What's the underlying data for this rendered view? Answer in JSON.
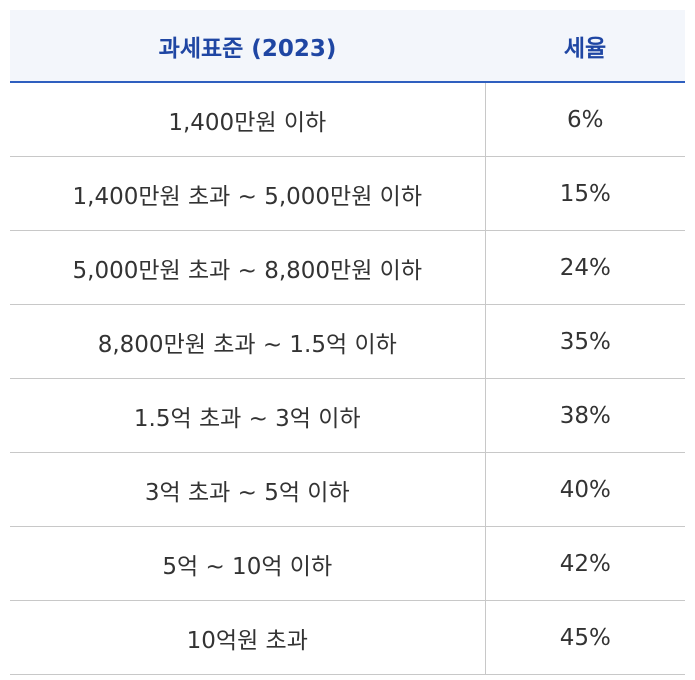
{
  "header": {
    "columns": [
      "과세표준 (2023)",
      "세율"
    ]
  },
  "table": {
    "rows": [
      [
        "1,400만원 이하",
        "6%"
      ],
      [
        "1,400만원 초과 ~ 5,000만원 이하",
        "15%"
      ],
      [
        "5,000만원 초과 ~ 8,800만원 이하",
        "24%"
      ],
      [
        "8,800만원 초과 ~ 1.5억 이하",
        "35%"
      ],
      [
        "1.5억 초과 ~ 3억 이하",
        "38%"
      ],
      [
        "3억 초과 ~ 5억 이하",
        "40%"
      ],
      [
        "5억 ~ 10억 이하",
        "42%"
      ],
      [
        "10억원 초과",
        "45%"
      ]
    ]
  }
}
